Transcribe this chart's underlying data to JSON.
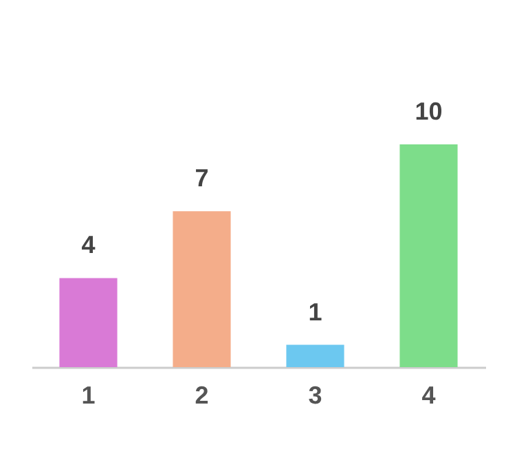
{
  "chart_data": {
    "type": "bar",
    "categories": [
      "1",
      "2",
      "3",
      "4"
    ],
    "values": [
      4,
      7,
      1,
      10
    ],
    "colors": [
      "#d97ad6",
      "#f4ad8a",
      "#6cc8f0",
      "#7ddd8a"
    ],
    "data_labels": true,
    "grid": false,
    "legend": false
  }
}
